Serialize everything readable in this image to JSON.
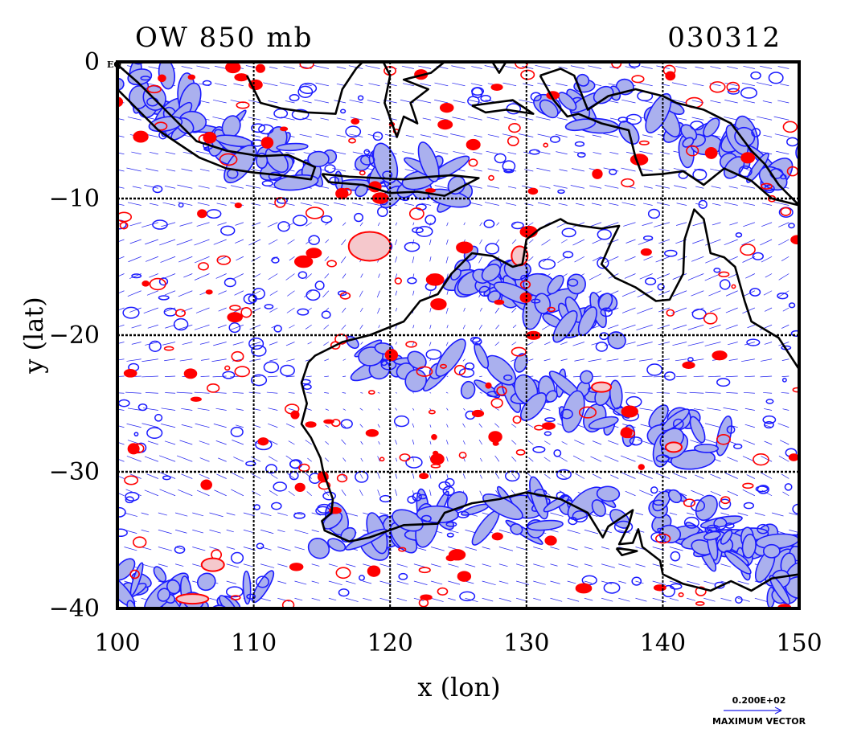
{
  "chart_data": {
    "type": "contour",
    "title_left": "OW 850 mb",
    "title_right": "030312",
    "xlabel": "x (lon)",
    "ylabel": "y (lat)",
    "xlim": [
      100,
      150
    ],
    "ylim": [
      -40,
      0
    ],
    "x_ticks": [
      100,
      110,
      120,
      130,
      140,
      150
    ],
    "x_tick_labels": [
      "100",
      "110",
      "120",
      "130",
      "140",
      "150"
    ],
    "y_ticks": [
      0,
      -10,
      -20,
      -30,
      -40
    ],
    "y_tick_labels": [
      "0",
      "−10",
      "−20",
      "−30",
      "−40"
    ],
    "corner_label": "EQ",
    "grid": true,
    "grid_lines_x": [
      110,
      120,
      130,
      140
    ],
    "grid_lines_y": [
      -10,
      -20,
      -30
    ],
    "reference_vector_value": "0.200E+02",
    "reference_vector_label": "MAXIMUM VECTOR",
    "colors": {
      "negative_contour": "#1a1aff",
      "negative_fill": "#aab0ee",
      "positive_contour": "#ff0000",
      "positive_fill": "#f5c8cc",
      "coastline": "#000000",
      "vector": "#2222ee"
    },
    "coastline": [
      {
        "name": "australia-mainland",
        "points": [
          [
            114.0,
            -22.0
          ],
          [
            114.5,
            -21.5
          ],
          [
            116.5,
            -20.5
          ],
          [
            118.5,
            -20.0
          ],
          [
            121.0,
            -19.0
          ],
          [
            122.2,
            -17.5
          ],
          [
            123.5,
            -17.0
          ],
          [
            124.5,
            -15.5
          ],
          [
            126.0,
            -14.0
          ],
          [
            127.5,
            -14.2
          ],
          [
            129.0,
            -15.0
          ],
          [
            129.7,
            -14.8
          ],
          [
            130.0,
            -13.0
          ],
          [
            131.0,
            -12.2
          ],
          [
            132.5,
            -11.5
          ],
          [
            133.0,
            -11.8
          ],
          [
            134.0,
            -12.0
          ],
          [
            135.5,
            -12.2
          ],
          [
            136.8,
            -12.0
          ],
          [
            136.2,
            -13.2
          ],
          [
            135.5,
            -14.8
          ],
          [
            136.5,
            -15.8
          ],
          [
            138.0,
            -16.5
          ],
          [
            139.5,
            -17.5
          ],
          [
            140.5,
            -17.4
          ],
          [
            141.5,
            -15.5
          ],
          [
            141.6,
            -13.0
          ],
          [
            142.3,
            -10.8
          ],
          [
            143.0,
            -11.5
          ],
          [
            143.5,
            -14.0
          ],
          [
            144.5,
            -14.3
          ],
          [
            145.3,
            -15.0
          ],
          [
            146.0,
            -17.5
          ],
          [
            146.5,
            -19.0
          ],
          [
            148.5,
            -20.2
          ],
          [
            150.0,
            -22.5
          ]
        ]
      },
      {
        "name": "australia-south",
        "points": [
          [
            150.0,
            -37.5
          ],
          [
            148.0,
            -37.8
          ],
          [
            146.5,
            -38.7
          ],
          [
            145.0,
            -38.0
          ],
          [
            143.5,
            -38.7
          ],
          [
            141.5,
            -38.2
          ],
          [
            140.0,
            -37.5
          ],
          [
            139.8,
            -36.5
          ],
          [
            138.5,
            -35.5
          ],
          [
            138.2,
            -34.2
          ],
          [
            137.8,
            -35.2
          ],
          [
            136.8,
            -35.3
          ],
          [
            137.5,
            -33.9
          ],
          [
            137.8,
            -32.8
          ],
          [
            136.0,
            -34.0
          ],
          [
            135.6,
            -34.8
          ],
          [
            134.5,
            -33.0
          ],
          [
            132.5,
            -32.0
          ],
          [
            130.0,
            -31.5
          ],
          [
            128.0,
            -32.0
          ],
          [
            126.0,
            -32.3
          ],
          [
            124.0,
            -33.0
          ],
          [
            123.5,
            -33.8
          ],
          [
            121.0,
            -33.9
          ],
          [
            118.5,
            -34.8
          ],
          [
            117.0,
            -35.1
          ],
          [
            115.2,
            -34.3
          ],
          [
            115.0,
            -33.6
          ],
          [
            115.7,
            -33.0
          ],
          [
            115.8,
            -32.0
          ],
          [
            115.1,
            -30.0
          ],
          [
            114.9,
            -29.0
          ],
          [
            114.2,
            -27.5
          ],
          [
            113.5,
            -26.5
          ],
          [
            113.9,
            -25.0
          ],
          [
            113.5,
            -23.5
          ],
          [
            114.0,
            -22.0
          ]
        ]
      },
      {
        "name": "sumatra-java",
        "points": [
          [
            100.0,
            -0.2
          ],
          [
            101.5,
            -1.5
          ],
          [
            103.0,
            -3.0
          ],
          [
            104.5,
            -4.5
          ],
          [
            105.8,
            -5.8
          ],
          [
            108.0,
            -6.5
          ],
          [
            110.5,
            -6.9
          ],
          [
            112.5,
            -6.8
          ],
          [
            114.5,
            -7.7
          ],
          [
            114.2,
            -8.6
          ],
          [
            112.0,
            -8.3
          ],
          [
            110.0,
            -8.1
          ],
          [
            108.0,
            -7.8
          ],
          [
            106.0,
            -7.0
          ],
          [
            104.5,
            -6.0
          ],
          [
            103.0,
            -5.0
          ],
          [
            101.5,
            -3.5
          ],
          [
            100.0,
            -2.0
          ]
        ]
      },
      {
        "name": "lesser-sunda",
        "points": [
          [
            115.0,
            -8.2
          ],
          [
            117.0,
            -8.4
          ],
          [
            119.0,
            -8.5
          ],
          [
            121.0,
            -8.6
          ],
          [
            123.0,
            -8.4
          ],
          [
            124.5,
            -8.3
          ],
          [
            126.5,
            -8.5
          ],
          [
            124.0,
            -9.8
          ],
          [
            122.0,
            -9.5
          ],
          [
            120.0,
            -9.6
          ],
          [
            118.0,
            -9.0
          ],
          [
            115.5,
            -8.8
          ],
          [
            115.0,
            -8.2
          ]
        ]
      },
      {
        "name": "borneo",
        "points": [
          [
            109.5,
            -1.0
          ],
          [
            110.5,
            -3.0
          ],
          [
            112.0,
            -3.4
          ],
          [
            114.0,
            -3.7
          ],
          [
            116.0,
            -3.8
          ],
          [
            116.5,
            -2.0
          ],
          [
            117.5,
            -0.5
          ],
          [
            118.0,
            0.0
          ]
        ]
      },
      {
        "name": "sulawesi",
        "points": [
          [
            119.5,
            0.0
          ],
          [
            120.0,
            -1.0
          ],
          [
            119.6,
            -3.0
          ],
          [
            120.5,
            -5.5
          ],
          [
            121.0,
            -4.0
          ],
          [
            122.0,
            -4.5
          ],
          [
            121.5,
            -3.0
          ],
          [
            122.8,
            -2.0
          ],
          [
            121.0,
            -1.3
          ],
          [
            123.0,
            -0.8
          ],
          [
            124.0,
            0.0
          ]
        ]
      },
      {
        "name": "halmahera",
        "points": [
          [
            127.5,
            0.0
          ],
          [
            128.0,
            -0.8
          ],
          [
            128.5,
            0.0
          ]
        ]
      },
      {
        "name": "seram-buru",
        "points": [
          [
            126.0,
            -3.2
          ],
          [
            127.0,
            -3.7
          ],
          [
            128.5,
            -3.5
          ],
          [
            130.5,
            -3.8
          ],
          [
            129.0,
            -2.8
          ],
          [
            127.5,
            -3.0
          ],
          [
            126.0,
            -3.2
          ]
        ]
      },
      {
        "name": "new-guinea",
        "points": [
          [
            131.0,
            -1.0
          ],
          [
            132.5,
            -0.5
          ],
          [
            133.5,
            -1.0
          ],
          [
            134.5,
            -3.5
          ],
          [
            136.0,
            -2.5
          ],
          [
            138.0,
            -2.0
          ],
          [
            140.0,
            -2.5
          ],
          [
            141.0,
            -3.0
          ],
          [
            143.0,
            -3.5
          ],
          [
            145.0,
            -4.5
          ],
          [
            146.5,
            -6.5
          ],
          [
            147.5,
            -7.5
          ],
          [
            148.5,
            -9.0
          ],
          [
            150.0,
            -10.5
          ],
          [
            148.0,
            -10.0
          ],
          [
            146.5,
            -8.7
          ],
          [
            144.5,
            -7.8
          ],
          [
            143.0,
            -9.0
          ],
          [
            141.5,
            -8.0
          ],
          [
            140.0,
            -8.2
          ],
          [
            138.5,
            -8.3
          ],
          [
            138.0,
            -7.0
          ],
          [
            137.5,
            -5.0
          ],
          [
            135.5,
            -4.5
          ],
          [
            133.8,
            -3.8
          ],
          [
            133.0,
            -4.0
          ],
          [
            132.0,
            -2.8
          ],
          [
            131.0,
            -1.0
          ]
        ]
      },
      {
        "name": "tasmania",
        "points": [
          [
            144.6,
            -40.0
          ],
          [
            145.5,
            -40.3
          ],
          [
            148.0,
            -40.0
          ]
        ]
      },
      {
        "name": "kangaroo-island",
        "points": [
          [
            136.6,
            -35.6
          ],
          [
            137.5,
            -35.7
          ],
          [
            138.1,
            -35.8
          ],
          [
            137.0,
            -36.1
          ],
          [
            136.6,
            -35.6
          ]
        ]
      }
    ]
  }
}
